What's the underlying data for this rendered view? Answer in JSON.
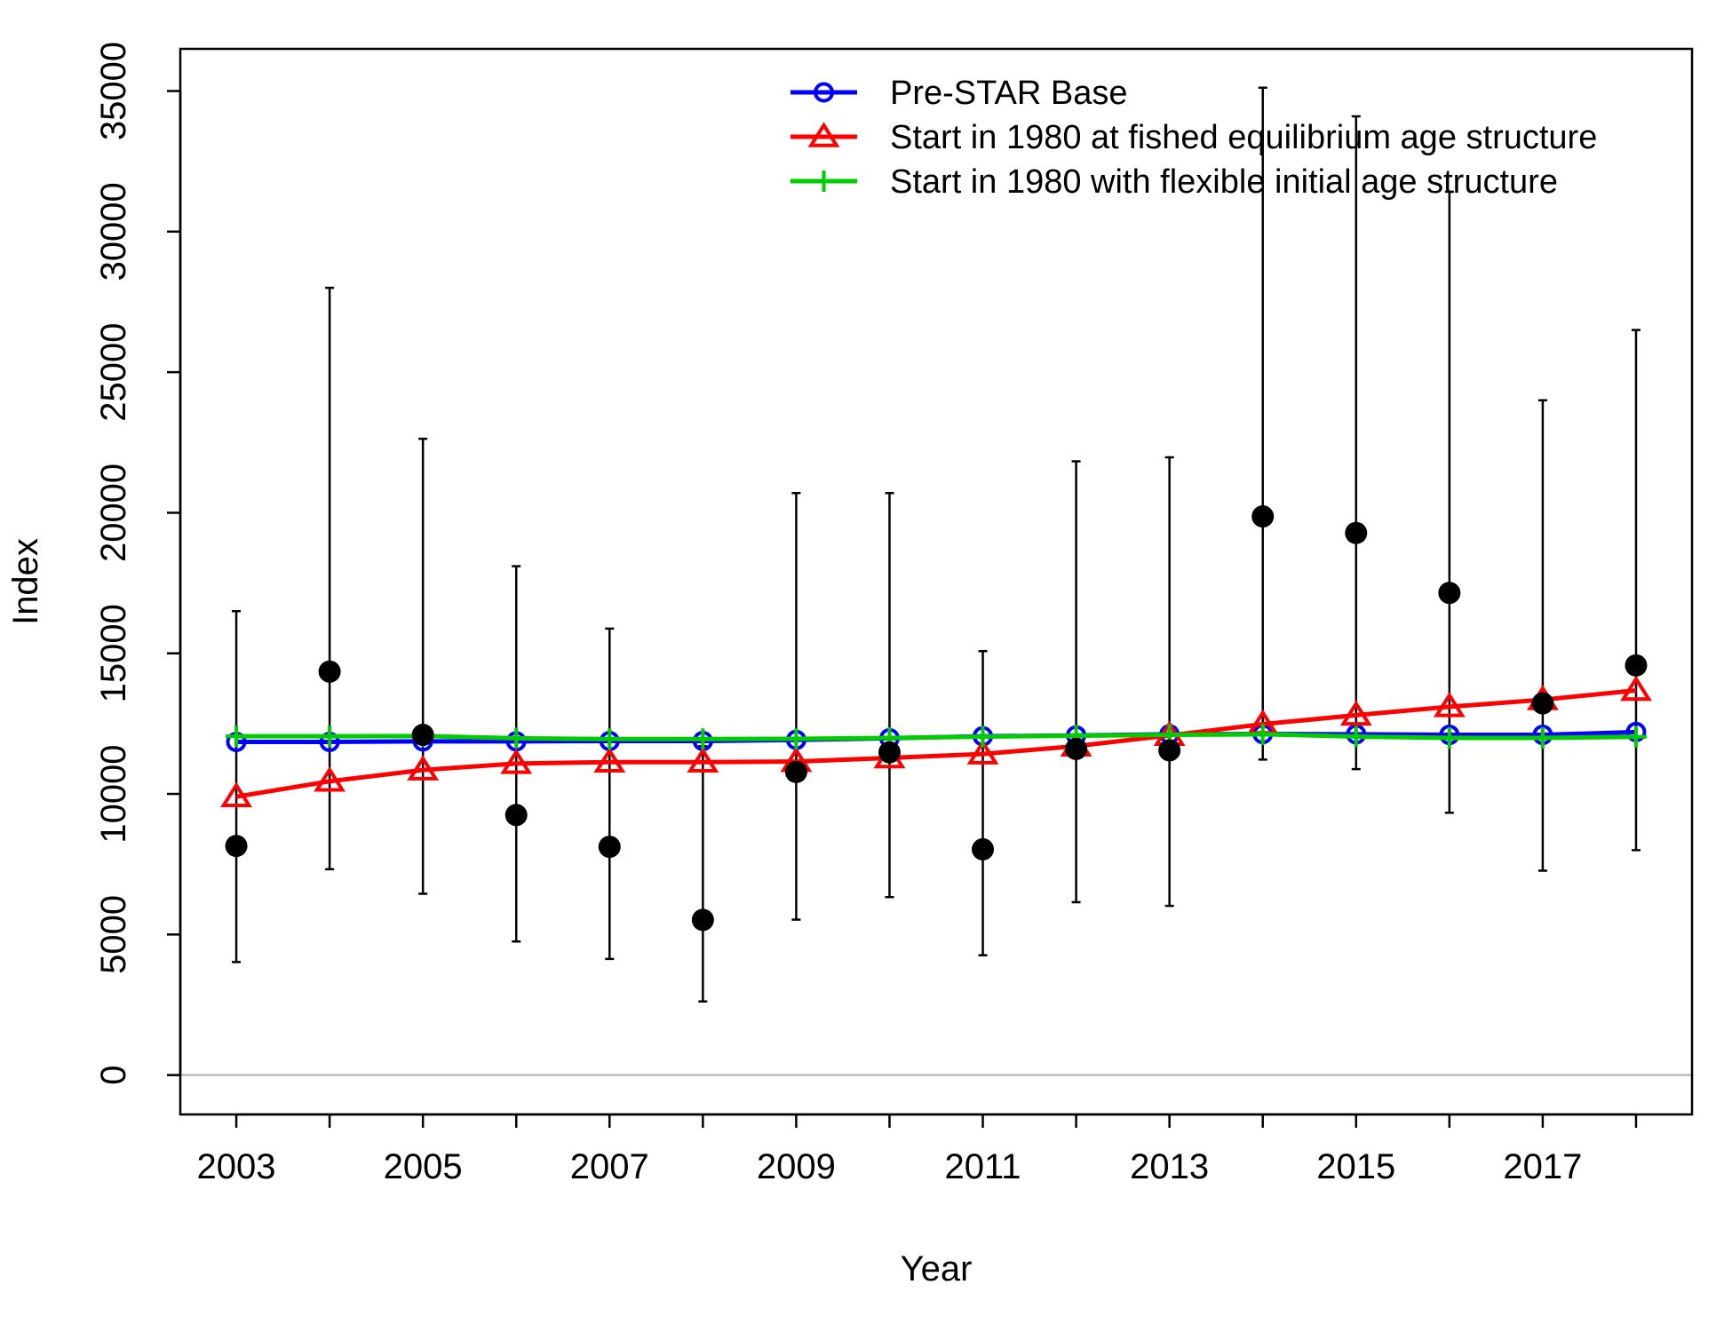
{
  "chart_data": {
    "type": "line",
    "xlabel": "Year",
    "ylabel": "Index",
    "x": [
      2003,
      2004,
      2005,
      2006,
      2007,
      2008,
      2009,
      2010,
      2011,
      2012,
      2013,
      2014,
      2015,
      2016,
      2017,
      2018
    ],
    "xlim": [
      2002.4,
      2018.6
    ],
    "ylim": [
      -1400,
      36500
    ],
    "x_ticks": [
      2003,
      2005,
      2007,
      2009,
      2011,
      2013,
      2015,
      2017
    ],
    "y_ticks": [
      0,
      5000,
      10000,
      15000,
      20000,
      25000,
      30000,
      35000
    ],
    "grid": false,
    "legend_position": "top-right",
    "observed": {
      "color": "#000000",
      "values": [
        8150,
        14350,
        12100,
        9250,
        8120,
        5520,
        10780,
        11480,
        8030,
        11600,
        11550,
        19870,
        19280,
        17150,
        13220,
        14570
      ],
      "lower": [
        4020,
        7320,
        6450,
        4750,
        4130,
        2620,
        5530,
        6330,
        4260,
        6150,
        6020,
        11220,
        10880,
        9330,
        7270,
        8000
      ],
      "upper": [
        16500,
        28000,
        22630,
        18100,
        15880,
        11700,
        20700,
        20700,
        15080,
        21830,
        21970,
        35120,
        34100,
        31420,
        24000,
        26500
      ]
    },
    "reference_lines": [
      {
        "y": 0,
        "color": "#bebebe"
      }
    ],
    "series": [
      {
        "name": "Pre-STAR Base",
        "color": "#0000ff",
        "marker": "circle",
        "values": [
          11850,
          11850,
          11870,
          11870,
          11880,
          11880,
          11920,
          11980,
          12050,
          12080,
          12120,
          12130,
          12120,
          12100,
          12100,
          12200
        ]
      },
      {
        "name": "Start in 1980 at fished equilibrium age structure",
        "color": "#ff0000",
        "marker": "triangle",
        "values": [
          9900,
          10450,
          10850,
          11080,
          11130,
          11130,
          11150,
          11280,
          11420,
          11700,
          12080,
          12480,
          12800,
          13100,
          13350,
          13680
        ]
      },
      {
        "name": "Start in 1980 with flexible initial age structure",
        "color": "#00cd00",
        "marker": "plus",
        "values": [
          12050,
          12050,
          12060,
          11980,
          11950,
          11950,
          11960,
          11990,
          12040,
          12070,
          12100,
          12120,
          12040,
          11990,
          11990,
          12030
        ]
      }
    ]
  }
}
